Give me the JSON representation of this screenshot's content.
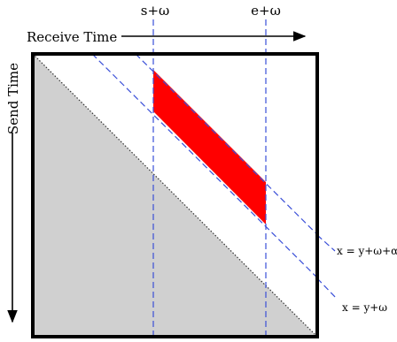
{
  "labels": {
    "x_axis": "Receive Time",
    "y_axis": "Send Time",
    "vline_left": "s+ω",
    "vline_right": "e+ω",
    "line_upper": "x = y+ω+α",
    "line_lower": "x = y+ω"
  },
  "colors": {
    "frame": "#000000",
    "shaded_region": "#d0d0d0",
    "highlight": "#ff0000",
    "guide_lines": "#3a4fd8",
    "diagonal": "#333333"
  }
}
